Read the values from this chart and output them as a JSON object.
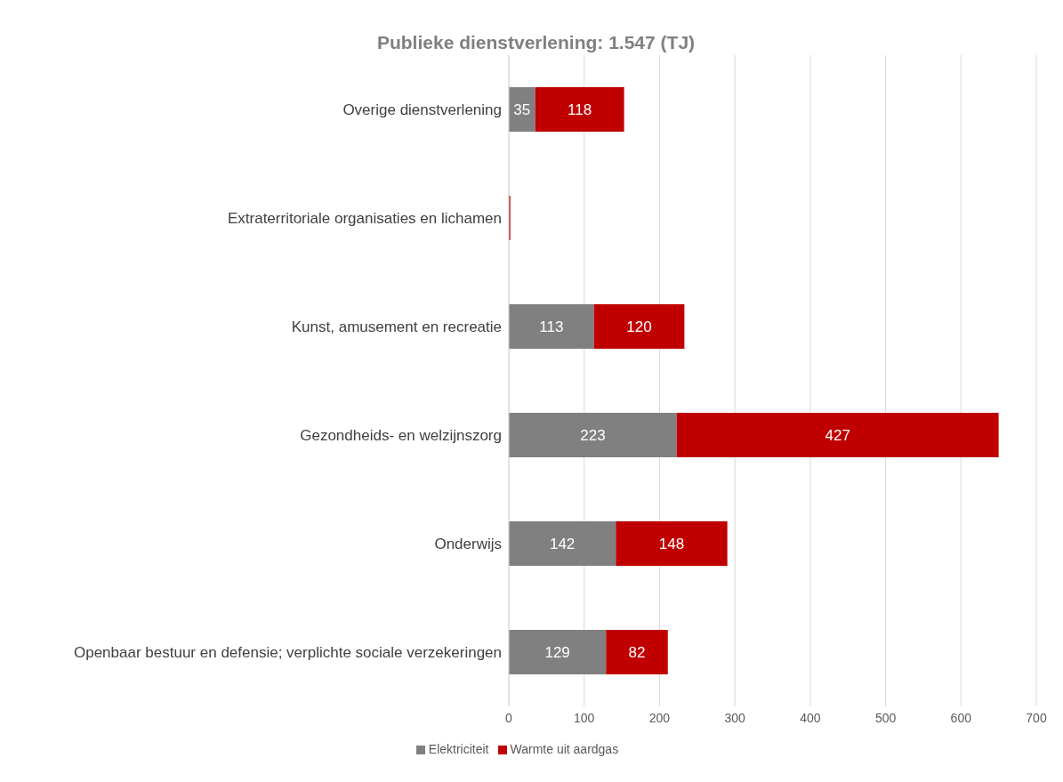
{
  "chart_data": {
    "type": "bar",
    "orientation": "horizontal",
    "stacked": true,
    "title": "Publieke dienstverlening: 1.547 (TJ)",
    "categories": [
      "Overige dienstverlening",
      "Extraterritoriale organisaties en lichamen",
      "Kunst, amusement en recreatie",
      "Gezondheids- en welzijnszorg",
      "Onderwijs",
      "Openbaar bestuur en defensie; verplichte sociale verzekeringen"
    ],
    "series": [
      {
        "name": "Elektriciteit",
        "color": "#808080",
        "values": [
          35,
          0,
          113,
          223,
          142,
          129
        ],
        "value_labels": [
          "35",
          null,
          "113",
          "223",
          "142",
          "129"
        ]
      },
      {
        "name": "Warmte uit aardgas",
        "color": "#c00000",
        "values": [
          118,
          2,
          120,
          427,
          148,
          82
        ],
        "value_labels": [
          "118",
          null,
          "120",
          "427",
          "148",
          "82"
        ]
      }
    ],
    "xlim": [
      0,
      700
    ],
    "xticks": [
      0,
      100,
      200,
      300,
      400,
      500,
      600,
      700
    ],
    "grid": "x",
    "legend": "bottom"
  }
}
